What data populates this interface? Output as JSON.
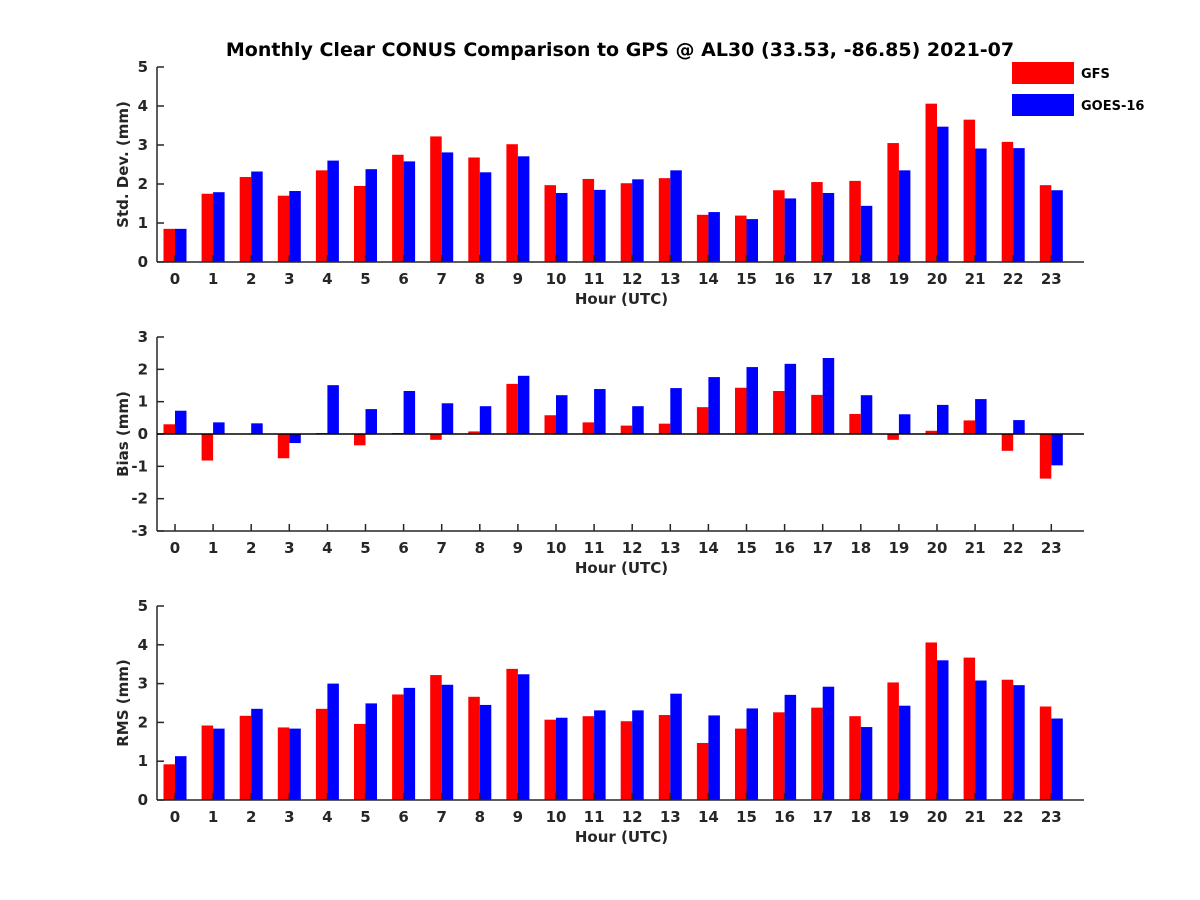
{
  "title": "Monthly Clear CONUS Comparison to GPS @ AL30 (33.53, -86.85) 2021-07",
  "legend": {
    "placement": "top-right",
    "entries": [
      {
        "name": "GFS",
        "color": "#ff0000"
      },
      {
        "name": "GOES-16",
        "color": "#0000ff"
      }
    ]
  },
  "chart_data": [
    {
      "type": "bar",
      "xlabel": "Hour (UTC)",
      "ylabel": "Std. Dev. (mm)",
      "ylim": [
        0,
        5
      ],
      "yticks": [
        "0",
        "1",
        "2",
        "3",
        "4",
        "5"
      ],
      "categories": [
        "0",
        "1",
        "2",
        "3",
        "4",
        "5",
        "6",
        "7",
        "8",
        "9",
        "10",
        "11",
        "12",
        "13",
        "14",
        "15",
        "16",
        "17",
        "18",
        "19",
        "20",
        "21",
        "22",
        "23"
      ],
      "series": [
        {
          "name": "GFS",
          "color": "#ff0000",
          "values": [
            0.85,
            1.75,
            2.18,
            1.7,
            2.35,
            1.95,
            2.75,
            3.22,
            2.68,
            3.02,
            1.97,
            2.13,
            2.02,
            2.15,
            1.21,
            1.19,
            1.84,
            2.05,
            2.08,
            3.05,
            4.06,
            3.65,
            3.08,
            1.97
          ]
        },
        {
          "name": "GOES-16",
          "color": "#0000ff",
          "values": [
            0.85,
            1.79,
            2.32,
            1.82,
            2.6,
            2.38,
            2.58,
            2.81,
            2.3,
            2.71,
            1.77,
            1.85,
            2.12,
            2.35,
            1.28,
            1.1,
            1.63,
            1.77,
            1.44,
            2.35,
            3.47,
            2.91,
            2.92,
            1.84
          ]
        }
      ]
    },
    {
      "type": "bar",
      "xlabel": "Hour (UTC)",
      "ylabel": "Bias (mm)",
      "ylim": [
        -3,
        3
      ],
      "yticks": [
        "-3",
        "-2",
        "-1",
        "0",
        "1",
        "2",
        "3"
      ],
      "categories": [
        "0",
        "1",
        "2",
        "3",
        "4",
        "5",
        "6",
        "7",
        "8",
        "9",
        "10",
        "11",
        "12",
        "13",
        "14",
        "15",
        "16",
        "17",
        "18",
        "19",
        "20",
        "21",
        "22",
        "23"
      ],
      "series": [
        {
          "name": "GFS",
          "color": "#ff0000",
          "values": [
            0.3,
            -0.82,
            0.0,
            -0.75,
            0.03,
            -0.35,
            0.03,
            -0.18,
            0.08,
            1.55,
            0.58,
            0.36,
            0.26,
            0.32,
            0.83,
            1.43,
            1.33,
            1.21,
            0.62,
            -0.18,
            0.1,
            0.42,
            -0.52,
            -1.38
          ]
        },
        {
          "name": "GOES-16",
          "color": "#0000ff",
          "values": [
            0.72,
            0.36,
            0.33,
            -0.28,
            1.51,
            0.77,
            1.33,
            0.95,
            0.86,
            1.8,
            1.2,
            1.39,
            0.86,
            1.42,
            1.76,
            2.07,
            2.17,
            2.35,
            1.2,
            0.61,
            0.9,
            1.08,
            0.43,
            -0.97
          ]
        }
      ]
    },
    {
      "type": "bar",
      "xlabel": "Hour (UTC)",
      "ylabel": "RMS (mm)",
      "ylim": [
        0,
        5
      ],
      "yticks": [
        "0",
        "1",
        "2",
        "3",
        "4",
        "5"
      ],
      "categories": [
        "0",
        "1",
        "2",
        "3",
        "4",
        "5",
        "6",
        "7",
        "8",
        "9",
        "10",
        "11",
        "12",
        "13",
        "14",
        "15",
        "16",
        "17",
        "18",
        "19",
        "20",
        "21",
        "22",
        "23"
      ],
      "series": [
        {
          "name": "GFS",
          "color": "#ff0000",
          "values": [
            0.92,
            1.92,
            2.17,
            1.87,
            2.35,
            1.96,
            2.72,
            3.22,
            2.66,
            3.38,
            2.07,
            2.16,
            2.03,
            2.19,
            1.47,
            1.84,
            2.26,
            2.38,
            2.16,
            3.03,
            4.06,
            3.67,
            3.1,
            2.41
          ]
        },
        {
          "name": "GOES-16",
          "color": "#0000ff",
          "values": [
            1.13,
            1.84,
            2.35,
            1.84,
            3.0,
            2.49,
            2.89,
            2.97,
            2.45,
            3.24,
            2.12,
            2.31,
            2.31,
            2.74,
            2.18,
            2.36,
            2.71,
            2.92,
            1.88,
            2.43,
            3.6,
            3.08,
            2.96,
            2.1
          ]
        }
      ]
    }
  ]
}
